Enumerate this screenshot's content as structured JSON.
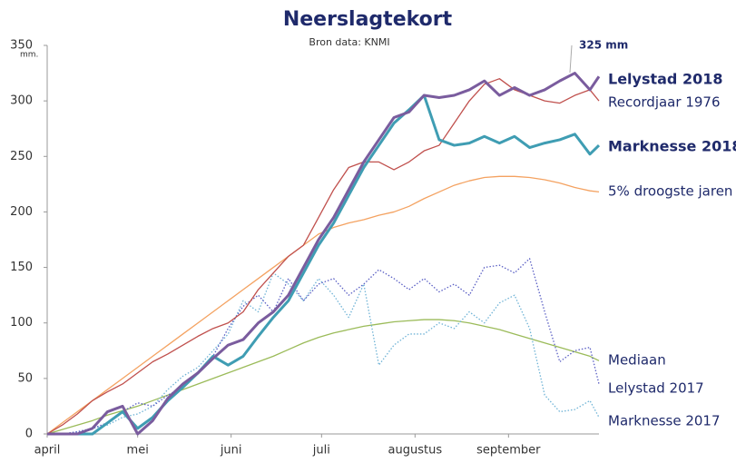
{
  "chart_data": {
    "type": "line",
    "title": "Neerslagtekort",
    "subtitle": "Bron data: KNMI",
    "y_unit": "mm.",
    "annotation": "325 mm",
    "x": [
      0,
      5,
      10,
      15,
      20,
      25,
      30,
      35,
      40,
      45,
      50,
      55,
      60,
      65,
      70,
      75,
      80,
      85,
      90,
      95,
      100,
      105,
      110,
      115,
      120,
      125,
      130,
      135,
      140,
      145,
      150,
      155,
      160,
      165,
      170,
      175,
      180,
      183
    ],
    "xlim": [
      0,
      183
    ],
    "xticks": [
      {
        "value": 0,
        "label": "april"
      },
      {
        "value": 30,
        "label": "mei"
      },
      {
        "value": 61,
        "label": "juni"
      },
      {
        "value": 91,
        "label": "juli"
      },
      {
        "value": 122,
        "label": "augustus"
      },
      {
        "value": 153,
        "label": "september"
      }
    ],
    "ylim": [
      0,
      350
    ],
    "yticks": [
      0,
      50,
      100,
      150,
      200,
      250,
      300,
      350
    ],
    "series": [
      {
        "name": "Lelystad 2018",
        "color": "#7a5c9e",
        "style": "solid",
        "values": [
          0,
          0,
          0,
          5,
          20,
          25,
          0,
          12,
          32,
          45,
          55,
          68,
          80,
          85,
          100,
          110,
          125,
          150,
          175,
          195,
          220,
          245,
          265,
          285,
          290,
          305,
          303,
          305,
          310,
          318,
          305,
          312,
          305,
          310,
          318,
          325,
          310,
          322
        ]
      },
      {
        "name": "Recordjaar 1976",
        "color": "#c0504d",
        "style": "solid",
        "values": [
          0,
          8,
          18,
          30,
          38,
          45,
          55,
          65,
          72,
          80,
          88,
          95,
          100,
          110,
          130,
          145,
          160,
          170,
          195,
          220,
          240,
          245,
          245,
          238,
          245,
          255,
          260,
          280,
          300,
          315,
          320,
          310,
          305,
          300,
          298,
          305,
          310,
          300
        ]
      },
      {
        "name": "Marknesse 2018",
        "color": "#3f9db3",
        "style": "solid",
        "values": [
          0,
          0,
          0,
          0,
          10,
          20,
          5,
          15,
          30,
          42,
          55,
          70,
          62,
          70,
          88,
          105,
          120,
          145,
          170,
          190,
          215,
          240,
          260,
          280,
          292,
          305,
          265,
          260,
          262,
          268,
          262,
          268,
          258,
          262,
          265,
          270,
          252,
          260
        ]
      },
      {
        "name": "5% droogste jaren",
        "color": "#f4a261",
        "style": "solid",
        "values": [
          0,
          10,
          20,
          30,
          40,
          50,
          60,
          70,
          80,
          90,
          100,
          110,
          120,
          130,
          140,
          150,
          160,
          170,
          180,
          186,
          190,
          193,
          197,
          200,
          205,
          212,
          218,
          224,
          228,
          231,
          232,
          232,
          231,
          229,
          226,
          222,
          219,
          218
        ]
      },
      {
        "name": "Mediaan",
        "color": "#9bbb59",
        "style": "solid",
        "values": [
          0,
          4,
          8,
          12,
          17,
          21,
          25,
          30,
          35,
          40,
          45,
          50,
          55,
          60,
          65,
          70,
          76,
          82,
          87,
          91,
          94,
          97,
          99,
          101,
          102,
          103,
          103,
          102,
          100,
          97,
          94,
          90,
          86,
          82,
          78,
          74,
          70,
          66
        ]
      },
      {
        "name": "Lelystad 2017",
        "color": "#5a5fc4",
        "style": "dotted",
        "values": [
          0,
          0,
          2,
          5,
          10,
          20,
          28,
          25,
          35,
          42,
          55,
          70,
          95,
          115,
          125,
          110,
          140,
          120,
          135,
          140,
          125,
          135,
          148,
          140,
          130,
          140,
          128,
          135,
          125,
          150,
          152,
          145,
          158,
          110,
          65,
          75,
          78,
          45
        ]
      },
      {
        "name": "Marknesse 2017",
        "color": "#6fb3d6",
        "style": "dotted",
        "values": [
          0,
          0,
          2,
          5,
          8,
          15,
          18,
          25,
          40,
          52,
          60,
          75,
          90,
          120,
          110,
          145,
          135,
          120,
          140,
          125,
          105,
          135,
          62,
          80,
          90,
          90,
          100,
          95,
          110,
          100,
          118,
          125,
          95,
          35,
          20,
          22,
          30,
          15
        ]
      }
    ]
  }
}
